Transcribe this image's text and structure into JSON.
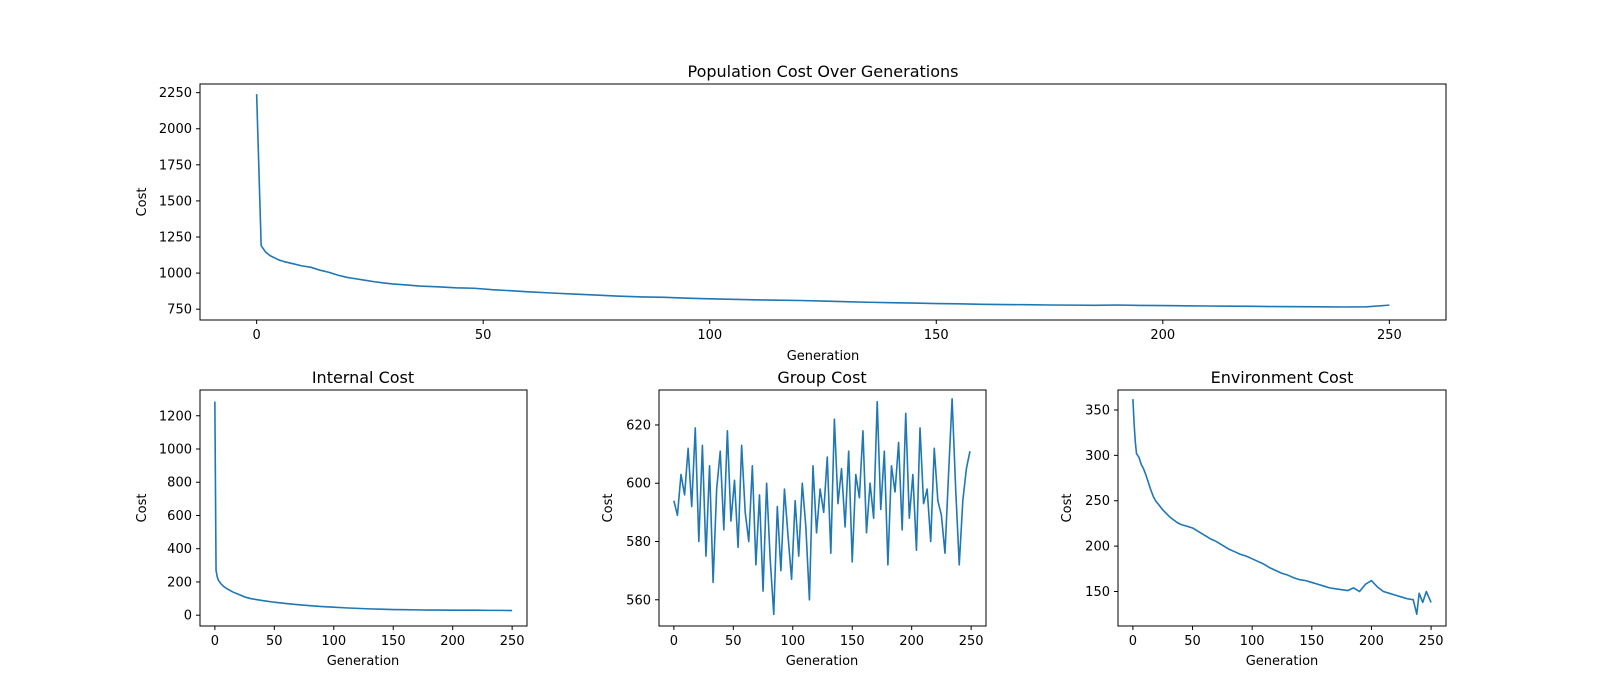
{
  "chart_data": [
    {
      "type": "line",
      "title": "Population Cost Over Generations",
      "xlabel": "Generation",
      "ylabel": "Cost",
      "xlim": [
        -12.5,
        262.5
      ],
      "ylim": [
        675,
        2310
      ],
      "xticks": [
        0,
        50,
        100,
        150,
        200,
        250
      ],
      "yticks": [
        750,
        1000,
        1250,
        1500,
        1750,
        2000,
        2250
      ],
      "grid": false,
      "color": "#1f77b4",
      "x": [
        0,
        1,
        2,
        3,
        4,
        5,
        6,
        8,
        10,
        12,
        14,
        16,
        18,
        20,
        22,
        24,
        26,
        28,
        30,
        33,
        36,
        40,
        44,
        48,
        52,
        56,
        60,
        65,
        70,
        75,
        80,
        85,
        90,
        95,
        100,
        105,
        110,
        115,
        120,
        125,
        130,
        135,
        140,
        145,
        150,
        155,
        160,
        165,
        170,
        175,
        180,
        185,
        190,
        195,
        200,
        205,
        210,
        215,
        220,
        225,
        230,
        235,
        240,
        245,
        250
      ],
      "y": [
        2240,
        1190,
        1145,
        1120,
        1105,
        1090,
        1080,
        1065,
        1050,
        1040,
        1020,
        1005,
        985,
        970,
        960,
        950,
        940,
        932,
        925,
        918,
        910,
        905,
        898,
        895,
        885,
        878,
        870,
        862,
        855,
        848,
        840,
        835,
        832,
        826,
        822,
        818,
        815,
        812,
        810,
        806,
        802,
        798,
        795,
        792,
        789,
        787,
        784,
        782,
        781,
        779,
        778,
        777,
        779,
        776,
        775,
        773,
        772,
        771,
        770,
        768,
        767,
        766,
        765,
        766,
        778
      ]
    },
    {
      "type": "line",
      "title": "Internal Cost",
      "xlabel": "Generation",
      "ylabel": "Cost",
      "xlim": [
        -12.5,
        262.5
      ],
      "ylim": [
        -65,
        1355
      ],
      "xticks": [
        0,
        50,
        100,
        150,
        200,
        250
      ],
      "yticks": [
        0,
        200,
        400,
        600,
        800,
        1000,
        1200
      ],
      "grid": false,
      "color": "#1f77b4",
      "x": [
        0,
        1,
        2,
        3,
        5,
        7,
        10,
        15,
        20,
        25,
        30,
        40,
        50,
        60,
        70,
        80,
        90,
        100,
        110,
        120,
        130,
        140,
        150,
        160,
        170,
        180,
        190,
        200,
        210,
        220,
        230,
        240,
        250
      ],
      "y": [
        1285,
        270,
        230,
        210,
        190,
        175,
        160,
        140,
        125,
        110,
        100,
        88,
        78,
        70,
        63,
        57,
        52,
        48,
        44,
        41,
        38,
        36,
        34,
        33,
        32,
        31,
        31,
        30,
        30,
        30,
        29,
        29,
        28
      ]
    },
    {
      "type": "line",
      "title": "Group Cost",
      "xlabel": "Generation",
      "ylabel": "Cost",
      "xlim": [
        -12.5,
        262.5
      ],
      "ylim": [
        551,
        632
      ],
      "xticks": [
        0,
        50,
        100,
        150,
        200,
        250
      ],
      "yticks": [
        560,
        580,
        600,
        620
      ],
      "grid": false,
      "color": "#1f77b4",
      "x": [
        0,
        3,
        6,
        9,
        12,
        15,
        18,
        21,
        24,
        27,
        30,
        33,
        36,
        39,
        42,
        45,
        48,
        51,
        54,
        57,
        60,
        63,
        66,
        69,
        72,
        75,
        78,
        81,
        84,
        87,
        90,
        93,
        96,
        99,
        102,
        105,
        108,
        111,
        114,
        117,
        120,
        123,
        126,
        129,
        132,
        135,
        138,
        141,
        144,
        147,
        150,
        153,
        156,
        159,
        162,
        165,
        168,
        171,
        174,
        177,
        180,
        183,
        186,
        189,
        192,
        195,
        198,
        201,
        204,
        207,
        210,
        213,
        216,
        219,
        222,
        225,
        228,
        231,
        234,
        237,
        240,
        243,
        246,
        249
      ],
      "y": [
        594,
        589,
        603,
        596,
        612,
        592,
        619,
        580,
        613,
        575,
        606,
        566,
        598,
        611,
        584,
        618,
        587,
        601,
        578,
        613,
        590,
        580,
        606,
        572,
        596,
        563,
        600,
        574,
        555,
        592,
        570,
        598,
        582,
        567,
        594,
        575,
        600,
        585,
        560,
        606,
        583,
        598,
        590,
        609,
        576,
        622,
        593,
        605,
        585,
        611,
        573,
        603,
        595,
        618,
        583,
        600,
        588,
        628,
        591,
        611,
        572,
        606,
        597,
        614,
        584,
        624,
        588,
        603,
        577,
        619,
        593,
        598,
        580,
        612,
        594,
        589,
        576,
        603,
        629,
        598,
        572,
        594,
        605,
        611
      ]
    },
    {
      "type": "line",
      "title": "Environment Cost",
      "xlabel": "Generation",
      "ylabel": "Cost",
      "xlim": [
        -12.5,
        262.5
      ],
      "ylim": [
        112,
        372
      ],
      "xticks": [
        0,
        50,
        100,
        150,
        200,
        250
      ],
      "yticks": [
        150,
        200,
        250,
        300,
        350
      ],
      "grid": false,
      "color": "#1f77b4",
      "x": [
        0,
        1,
        2,
        3,
        5,
        7,
        9,
        11,
        13,
        15,
        17,
        19,
        22,
        25,
        28,
        31,
        34,
        37,
        40,
        45,
        50,
        55,
        60,
        65,
        70,
        75,
        80,
        85,
        90,
        95,
        100,
        105,
        110,
        115,
        120,
        125,
        130,
        135,
        140,
        145,
        150,
        155,
        160,
        165,
        170,
        175,
        180,
        185,
        190,
        195,
        200,
        205,
        210,
        215,
        220,
        225,
        230,
        235,
        238,
        240,
        243,
        246,
        250
      ],
      "y": [
        362,
        335,
        315,
        302,
        298,
        290,
        285,
        278,
        270,
        262,
        255,
        250,
        245,
        240,
        236,
        232,
        229,
        226,
        224,
        222,
        220,
        216,
        212,
        208,
        205,
        201,
        197,
        194,
        191,
        189,
        186,
        183,
        180,
        176,
        173,
        170,
        168,
        165,
        163,
        162,
        160,
        158,
        156,
        154,
        153,
        152,
        151,
        154,
        150,
        158,
        162,
        155,
        150,
        148,
        146,
        144,
        142,
        141,
        125,
        148,
        138,
        150,
        138
      ]
    }
  ]
}
